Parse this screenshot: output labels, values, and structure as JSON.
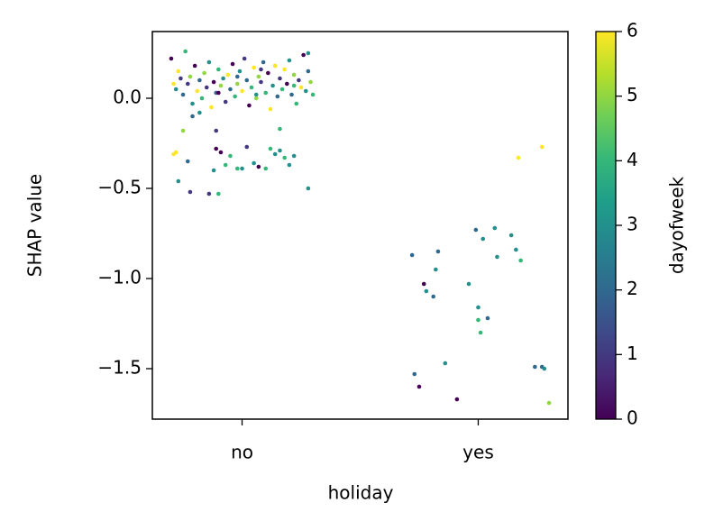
{
  "chart_data": {
    "type": "scatter",
    "x_label": "holiday",
    "y_label": "SHAP value",
    "xlim": [
      -0.38,
      1.38
    ],
    "ylim": [
      -1.78,
      0.37
    ],
    "xticks": [
      {
        "value": 0,
        "label": "no"
      },
      {
        "value": 1,
        "label": "yes"
      }
    ],
    "yticks": [
      {
        "value": 0,
        "label": "0.0"
      },
      {
        "value": -0.5,
        "label": "−0.5"
      },
      {
        "value": -1,
        "label": "−1.0"
      },
      {
        "value": -1.5,
        "label": "−1.5"
      }
    ],
    "colormap": "viridis",
    "colorbar": {
      "label": "dayofweek",
      "lim": [
        0,
        6
      ],
      "ticks": [
        0,
        1,
        2,
        3,
        4,
        5,
        6
      ]
    },
    "points": {
      "x": [
        -0.3,
        -0.28,
        -0.27,
        -0.25,
        -0.24,
        -0.23,
        -0.22,
        -0.21,
        -0.2,
        -0.19,
        -0.18,
        -0.17,
        -0.16,
        -0.15,
        -0.14,
        -0.13,
        -0.12,
        -0.11,
        -0.1,
        -0.09,
        -0.08,
        -0.07,
        -0.06,
        -0.05,
        -0.04,
        -0.03,
        -0.02,
        -0.01,
        0.0,
        0.01,
        0.02,
        0.03,
        0.04,
        0.05,
        0.06,
        0.07,
        0.08,
        0.09,
        0.1,
        0.11,
        0.12,
        0.13,
        0.14,
        0.15,
        0.16,
        0.17,
        0.18,
        0.19,
        0.2,
        0.21,
        0.22,
        0.23,
        0.24,
        0.25,
        0.26,
        0.27,
        0.28,
        0.29,
        0.3,
        -0.29,
        -0.26,
        -0.18,
        -0.1,
        -0.02,
        0.06,
        0.14,
        0.22,
        0.28,
        -0.21,
        0.08,
        -0.29,
        -0.28,
        -0.25,
        -0.27,
        -0.23,
        -0.22,
        -0.14,
        -0.1,
        -0.11,
        -0.11,
        -0.12,
        -0.09,
        -0.07,
        -0.05,
        -0.02,
        0.0,
        0.02,
        0.05,
        0.07,
        0.1,
        0.12,
        0.14,
        0.16,
        0.18,
        0.2,
        0.22,
        0.28,
        0.16,
        0.72,
        0.73,
        0.75,
        0.77,
        0.78,
        0.81,
        0.82,
        0.83,
        0.86,
        0.91,
        0.96,
        0.99,
        1.02,
        1.0,
        1.0,
        1.01,
        1.04,
        1.07,
        1.08,
        1.14,
        1.16,
        1.18,
        1.17,
        1.27,
        1.24,
        1.27,
        1.28,
        1.3
      ],
      "y": [
        0.22,
        0.05,
        0.15,
        0.02,
        0.26,
        0.08,
        0.12,
        -0.03,
        0.18,
        0.04,
        0.1,
        0.0,
        0.14,
        0.06,
        0.2,
        -0.05,
        0.09,
        0.03,
        0.16,
        0.07,
        0.11,
        -0.02,
        0.13,
        0.05,
        0.19,
        0.01,
        0.08,
        0.15,
        0.04,
        0.22,
        0.1,
        -0.04,
        0.06,
        0.17,
        0.02,
        0.12,
        0.09,
        0.2,
        0.03,
        0.14,
        -0.06,
        0.07,
        0.18,
        0.01,
        0.11,
        0.05,
        0.16,
        0.08,
        0.21,
        0.02,
        0.13,
        -0.03,
        0.1,
        0.06,
        0.24,
        0.04,
        0.15,
        0.09,
        0.02,
        0.08,
        0.11,
        -0.08,
        0.03,
        0.12,
        0.0,
        0.18,
        0.07,
        0.25,
        -0.1,
        0.16,
        -0.31,
        -0.3,
        -0.18,
        -0.46,
        -0.35,
        -0.52,
        -0.53,
        -0.53,
        -0.18,
        -0.28,
        -0.4,
        -0.3,
        -0.37,
        -0.32,
        -0.39,
        -0.39,
        -0.27,
        -0.36,
        -0.38,
        -0.39,
        -0.28,
        -0.31,
        -0.29,
        -0.33,
        -0.37,
        -0.32,
        -0.5,
        -0.17,
        -0.87,
        -1.53,
        -1.6,
        -1.03,
        -1.07,
        -1.1,
        -0.95,
        -0.85,
        -1.47,
        -1.67,
        -1.03,
        -0.73,
        -0.78,
        -1.16,
        -1.23,
        -1.3,
        -1.22,
        -0.72,
        -0.88,
        -0.76,
        -0.84,
        -0.9,
        -0.33,
        -0.27,
        -1.49,
        -1.49,
        -1.5,
        -1.69
      ],
      "c": [
        0,
        3,
        6,
        2,
        4,
        1,
        5,
        3,
        0,
        6,
        2,
        4,
        5,
        1,
        3,
        6,
        0,
        2,
        4,
        5,
        3,
        1,
        6,
        2,
        0,
        4,
        5,
        3,
        6,
        1,
        2,
        0,
        4,
        6,
        3,
        5,
        1,
        2,
        4,
        0,
        6,
        3,
        5,
        2,
        1,
        4,
        6,
        0,
        3,
        2,
        5,
        4,
        1,
        6,
        0,
        3,
        2,
        5,
        4,
        6,
        1,
        3,
        0,
        2,
        5,
        6,
        4,
        3,
        2,
        1,
        6,
        6,
        5,
        3,
        2,
        1,
        1,
        4,
        1,
        0,
        3,
        0,
        4,
        4,
        4,
        3,
        1,
        3,
        0,
        4,
        4,
        3,
        3,
        4,
        3,
        3,
        3,
        4,
        2,
        2,
        0,
        0,
        3,
        2,
        3,
        2,
        3,
        0,
        3,
        2,
        3,
        3,
        4,
        4,
        2,
        3,
        3,
        3,
        3,
        4,
        6,
        6,
        2,
        2,
        3,
        5
      ]
    }
  }
}
